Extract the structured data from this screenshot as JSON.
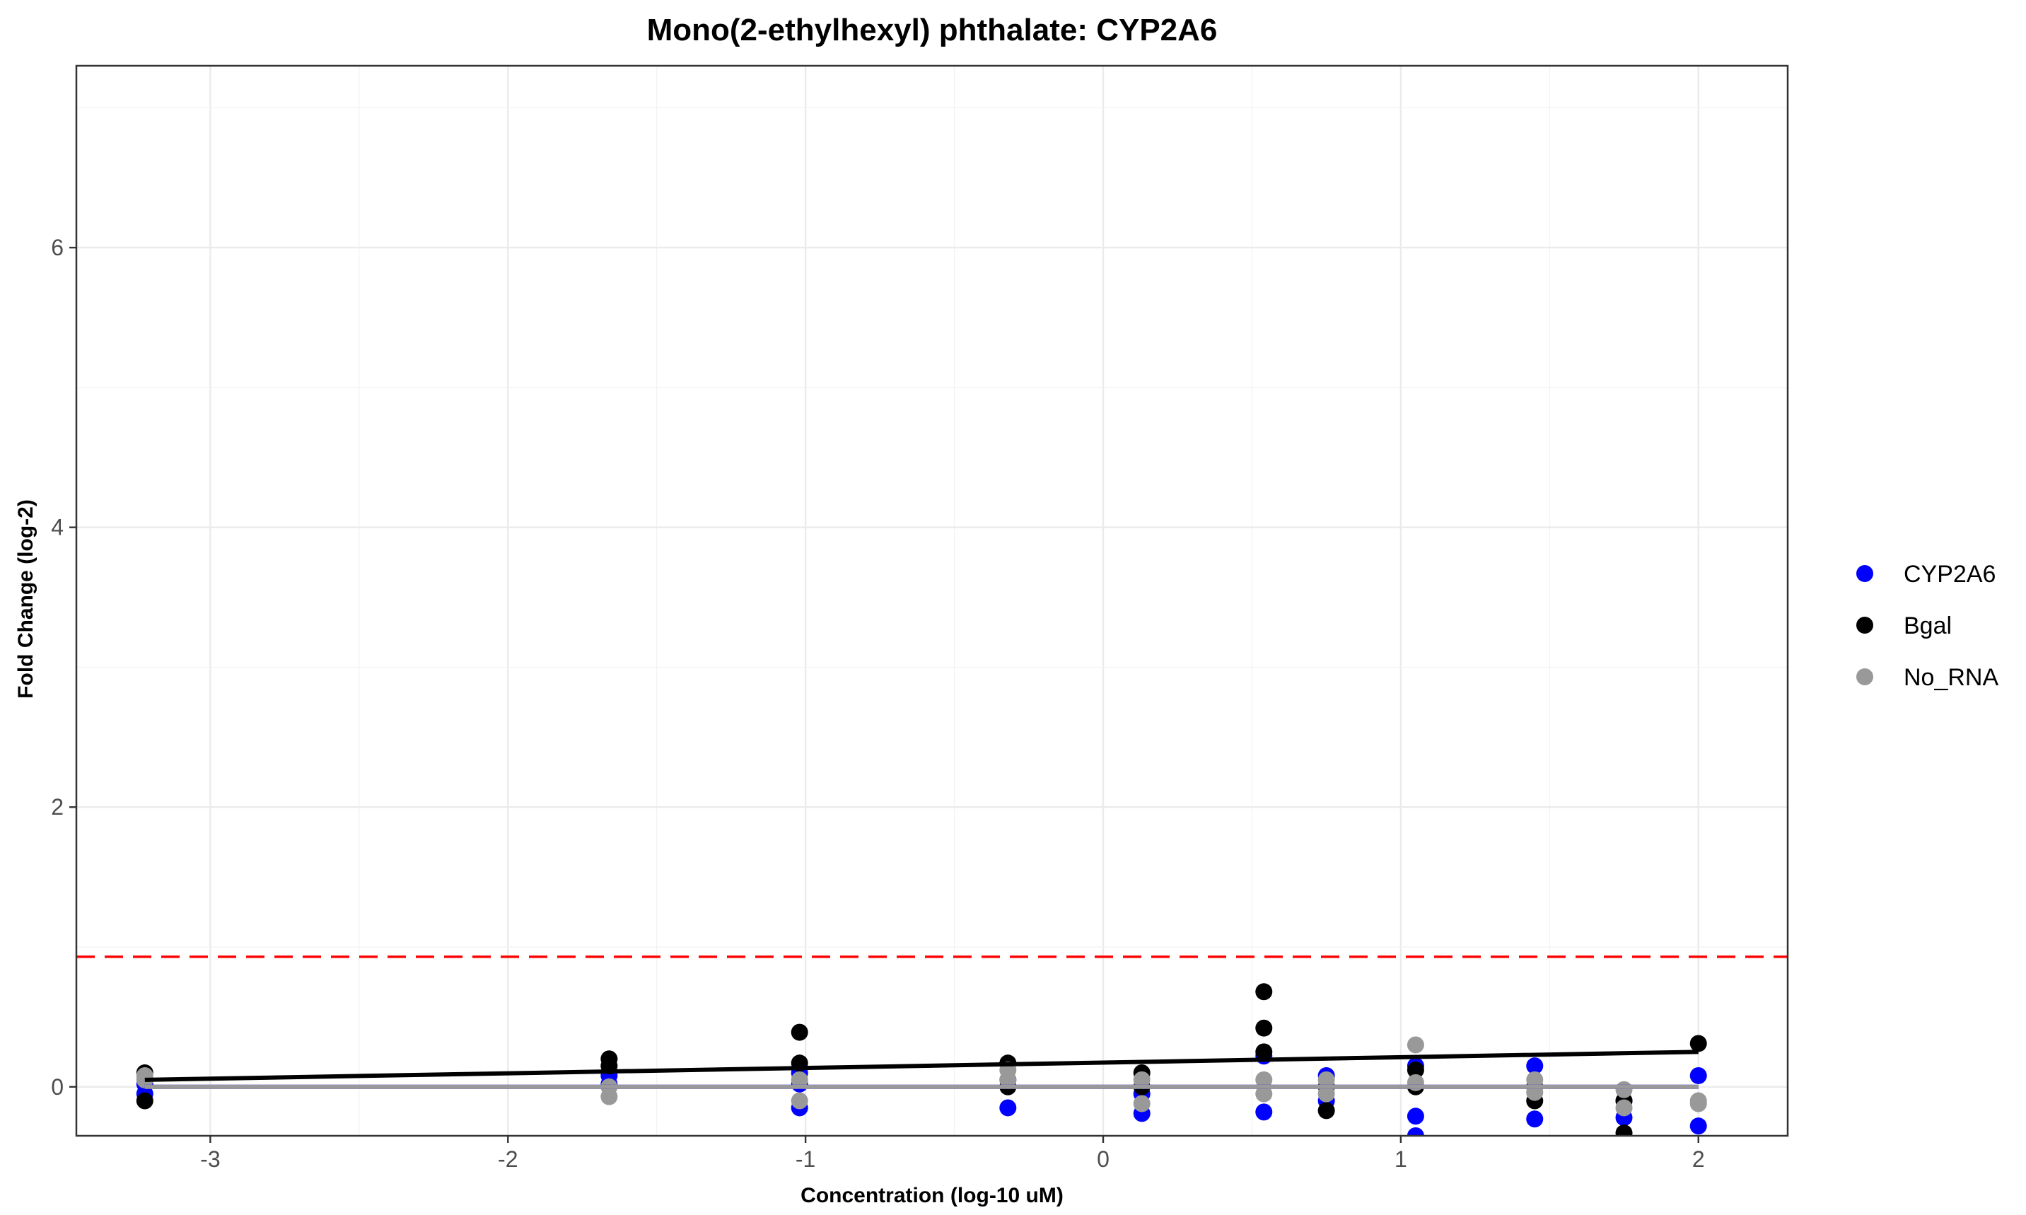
{
  "chart_data": {
    "type": "scatter",
    "title": "Mono(2-ethylhexyl) phthalate: CYP2A6",
    "xlabel": "Concentration (log-10 uM)",
    "ylabel": "Fold Change (log-2)",
    "xlim": [
      -3.45,
      2.3
    ],
    "ylim": [
      -0.35,
      7.3
    ],
    "x_ticks": [
      -3,
      -2,
      -1,
      0,
      1,
      2
    ],
    "x_tick_labels": [
      "-3",
      "-2",
      "-1",
      "0",
      "1",
      "2"
    ],
    "y_ticks": [
      0,
      2,
      4,
      6
    ],
    "y_tick_labels": [
      "0",
      "2",
      "4",
      "6"
    ],
    "grid": true,
    "legend_position": "right",
    "threshold": {
      "y": 0.93,
      "color": "#ff0000",
      "style": "dashed"
    },
    "series": [
      {
        "name": "CYP2A6",
        "color": "#0000ff",
        "points": [
          [
            -3.22,
            -0.05
          ],
          [
            -3.22,
            0.02
          ],
          [
            -1.66,
            0.08
          ],
          [
            -1.66,
            0.02
          ],
          [
            -1.02,
            -0.15
          ],
          [
            -1.02,
            0.1
          ],
          [
            -1.02,
            0.02
          ],
          [
            -0.32,
            -0.15
          ],
          [
            -0.32,
            0.05
          ],
          [
            0.13,
            -0.19
          ],
          [
            0.13,
            -0.05
          ],
          [
            0.54,
            0.22
          ],
          [
            0.54,
            -0.18
          ],
          [
            0.75,
            0.08
          ],
          [
            0.75,
            -0.1
          ],
          [
            1.05,
            -0.21
          ],
          [
            1.05,
            -0.35
          ],
          [
            1.05,
            0.15
          ],
          [
            1.45,
            0.15
          ],
          [
            1.45,
            -0.23
          ],
          [
            1.75,
            -0.22
          ],
          [
            1.75,
            -0.1
          ],
          [
            2.0,
            0.08
          ],
          [
            2.0,
            -0.28
          ]
        ],
        "fit": [
          [
            -3.22,
            0.0
          ],
          [
            2.0,
            0.0
          ]
        ]
      },
      {
        "name": "Bgal",
        "color": "#000000",
        "points": [
          [
            -3.22,
            0.1
          ],
          [
            -3.22,
            -0.1
          ],
          [
            -1.66,
            0.2
          ],
          [
            -1.66,
            0.15
          ],
          [
            -1.02,
            0.39
          ],
          [
            -1.02,
            0.17
          ],
          [
            -0.32,
            0.17
          ],
          [
            -0.32,
            0.0
          ],
          [
            0.13,
            0.1
          ],
          [
            0.13,
            0.0
          ],
          [
            0.54,
            0.68
          ],
          [
            0.54,
            0.42
          ],
          [
            0.54,
            0.25
          ],
          [
            0.75,
            -0.17
          ],
          [
            0.75,
            0.0
          ],
          [
            1.05,
            0.12
          ],
          [
            1.05,
            0.0
          ],
          [
            1.45,
            -0.1
          ],
          [
            1.45,
            0.0
          ],
          [
            1.75,
            -0.33
          ],
          [
            1.75,
            -0.1
          ],
          [
            2.0,
            0.31
          ]
        ],
        "fit": [
          [
            -3.22,
            0.05
          ],
          [
            2.0,
            0.25
          ]
        ]
      },
      {
        "name": "No_RNA",
        "color": "#999999",
        "points": [
          [
            -3.22,
            0.05
          ],
          [
            -3.22,
            0.08
          ],
          [
            -1.66,
            -0.07
          ],
          [
            -1.66,
            0.0
          ],
          [
            -1.02,
            -0.1
          ],
          [
            -1.02,
            0.05
          ],
          [
            -0.32,
            0.12
          ],
          [
            -0.32,
            0.05
          ],
          [
            0.13,
            -0.12
          ],
          [
            0.13,
            0.05
          ],
          [
            0.54,
            0.05
          ],
          [
            0.54,
            -0.05
          ],
          [
            0.75,
            0.05
          ],
          [
            0.75,
            -0.05
          ],
          [
            1.05,
            0.3
          ],
          [
            1.05,
            0.03
          ],
          [
            1.45,
            0.05
          ],
          [
            1.45,
            -0.04
          ],
          [
            1.75,
            -0.02
          ],
          [
            1.75,
            -0.15
          ],
          [
            2.0,
            -0.1
          ],
          [
            2.0,
            -0.12
          ]
        ],
        "fit": [
          [
            -3.22,
            0.0
          ],
          [
            2.0,
            0.0
          ]
        ]
      }
    ]
  }
}
